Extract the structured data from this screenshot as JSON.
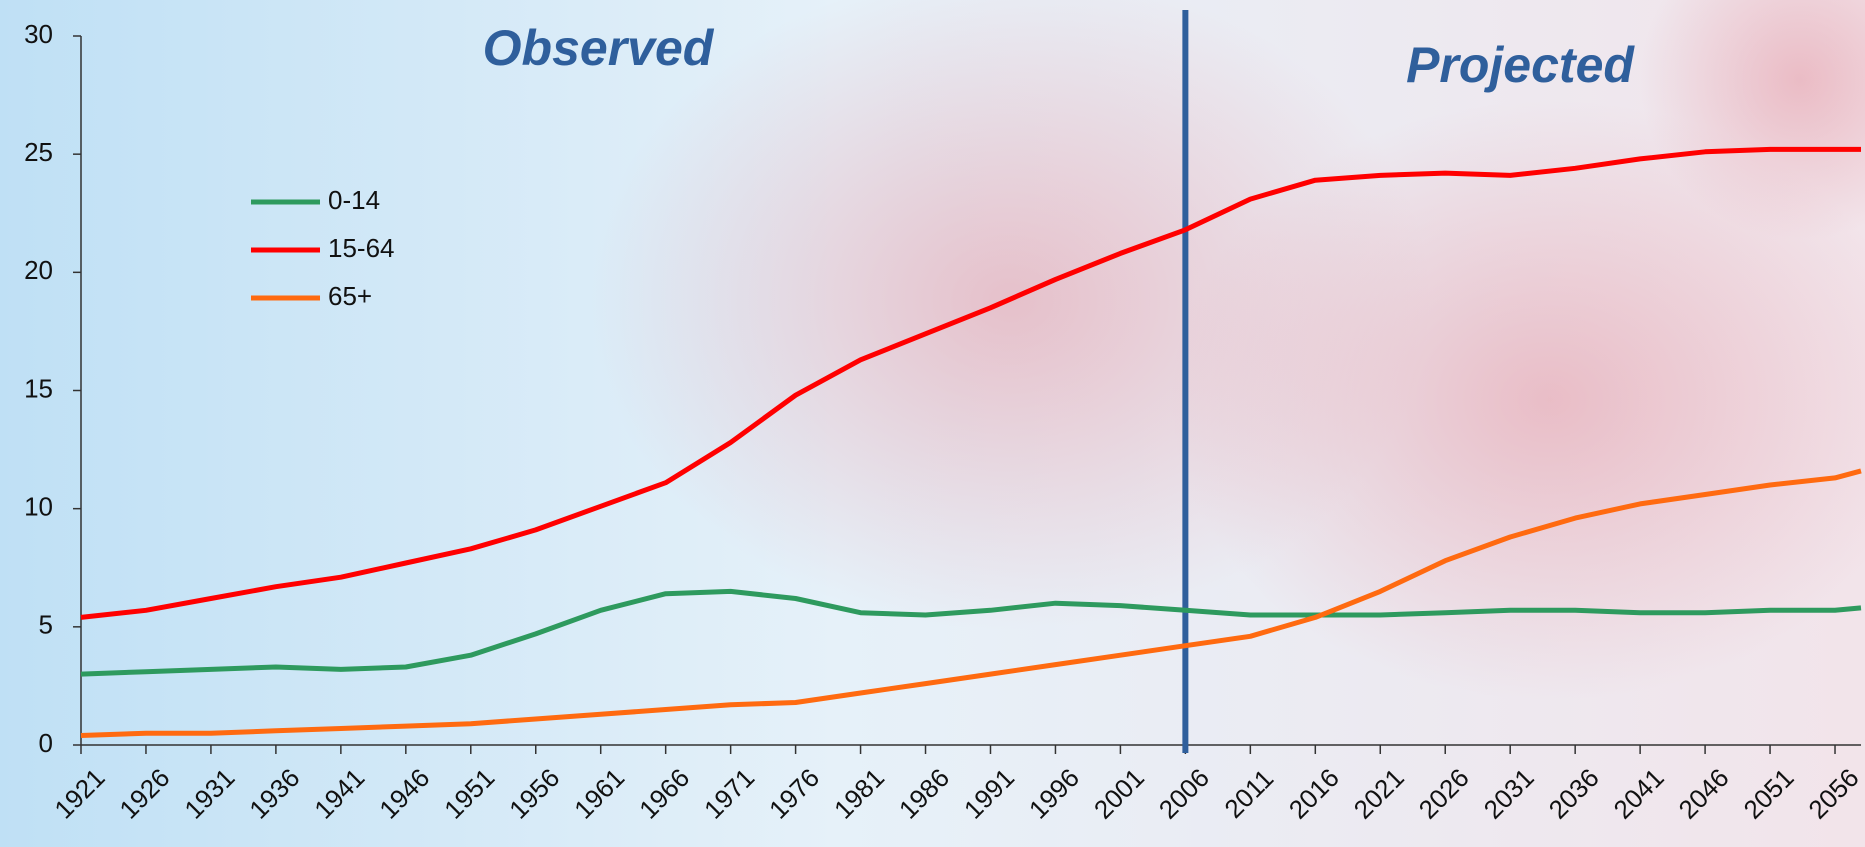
{
  "chart_data": {
    "type": "line",
    "annotations": [
      "Observed",
      "Projected"
    ],
    "divider_x": 2006,
    "x": [
      1921,
      1926,
      1931,
      1936,
      1941,
      1946,
      1951,
      1956,
      1961,
      1966,
      1971,
      1976,
      1981,
      1986,
      1991,
      1996,
      2001,
      2006,
      2011,
      2016,
      2021,
      2026,
      2031,
      2036,
      2041,
      2046,
      2051,
      2056,
      2058
    ],
    "series": [
      {
        "name": "0-14",
        "color": "#2e9a5e",
        "values": [
          3.0,
          3.1,
          3.2,
          3.3,
          3.2,
          3.3,
          3.8,
          4.7,
          5.7,
          6.4,
          6.5,
          6.2,
          5.6,
          5.5,
          5.7,
          6.0,
          5.9,
          5.7,
          5.5,
          5.5,
          5.5,
          5.6,
          5.7,
          5.7,
          5.6,
          5.6,
          5.7,
          5.7,
          5.8
        ]
      },
      {
        "name": "15-64",
        "color": "#ff0000",
        "values": [
          5.4,
          5.7,
          6.2,
          6.7,
          7.1,
          7.7,
          8.3,
          9.1,
          10.1,
          11.1,
          12.8,
          14.8,
          16.3,
          17.4,
          18.5,
          19.7,
          20.8,
          21.8,
          23.1,
          23.9,
          24.1,
          24.2,
          24.1,
          24.4,
          24.8,
          25.1,
          25.2,
          25.2,
          25.2
        ]
      },
      {
        "name": "65+",
        "color": "#ff6a10",
        "values": [
          0.4,
          0.5,
          0.5,
          0.6,
          0.7,
          0.8,
          0.9,
          1.1,
          1.3,
          1.5,
          1.7,
          1.8,
          2.2,
          2.6,
          3.0,
          3.4,
          3.8,
          4.2,
          4.6,
          5.4,
          6.5,
          7.8,
          8.8,
          9.6,
          10.2,
          10.6,
          11.0,
          11.3,
          11.6
        ]
      }
    ],
    "xlim": [
      1921,
      2058
    ],
    "xticks": [
      1921,
      1926,
      1931,
      1936,
      1941,
      1946,
      1951,
      1956,
      1961,
      1966,
      1971,
      1976,
      1981,
      1986,
      1991,
      1996,
      2001,
      2006,
      2011,
      2016,
      2021,
      2026,
      2031,
      2036,
      2041,
      2046,
      2051,
      2056
    ],
    "ylim": [
      0,
      30
    ],
    "yticks": [
      0,
      5,
      10,
      15,
      20,
      25,
      30
    ]
  }
}
